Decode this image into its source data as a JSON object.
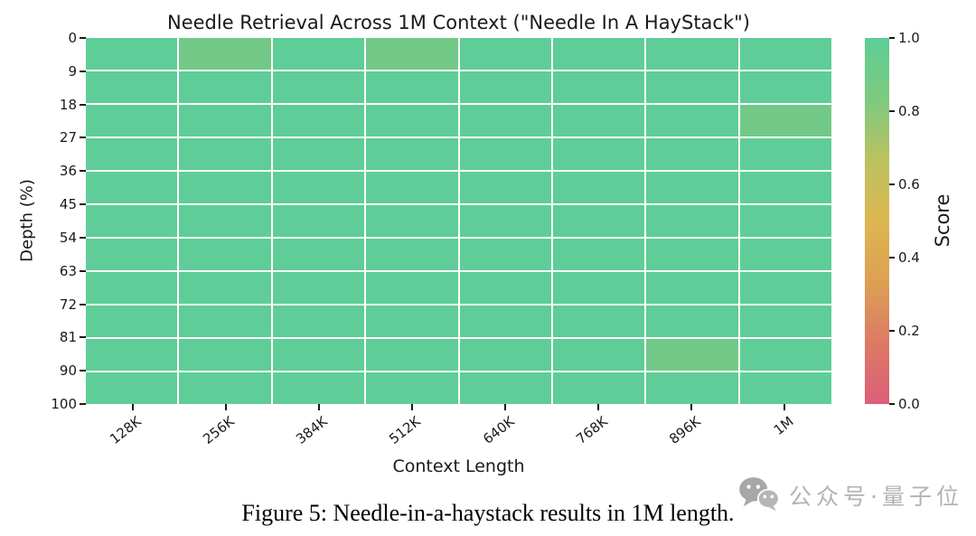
{
  "figure": {
    "caption": "Figure 5: Needle-in-a-haystack results in 1M length."
  },
  "watermark": {
    "text": "公众号·量子位",
    "icon": "wechat-icon"
  },
  "colors": {
    "background": "#ffffff",
    "text": "#1a1a1a",
    "cell_full": "#5FCD97",
    "cell_partial": "#72C987",
    "watermark_gray": "#b3b3b3",
    "colorbar_stops": [
      "#5ECD97",
      "#7CCA80",
      "#BAC260",
      "#DCB750",
      "#DDA053",
      "#DC7A65",
      "#DC5E79"
    ]
  },
  "chart_data": {
    "type": "heatmap",
    "title": "Needle Retrieval Across 1M Context (\"Needle In A HayStack\")",
    "xlabel": "Context Length",
    "ylabel": "Depth (%)",
    "categories": [
      "128K",
      "256K",
      "384K",
      "512K",
      "640K",
      "768K",
      "896K",
      "1M"
    ],
    "depth_ticks": [
      "0",
      "9",
      "18",
      "27",
      "36",
      "45",
      "54",
      "63",
      "72",
      "81",
      "90",
      "100"
    ],
    "row_bands": [
      "0-9",
      "9-18",
      "18-27",
      "27-36",
      "36-45",
      "45-54",
      "54-63",
      "63-72",
      "72-81",
      "81-90",
      "90-100"
    ],
    "rows": [
      [
        1.0,
        0.9,
        1.0,
        0.9,
        1.0,
        1.0,
        1.0,
        1.0
      ],
      [
        1.0,
        1.0,
        1.0,
        1.0,
        1.0,
        1.0,
        1.0,
        1.0
      ],
      [
        1.0,
        1.0,
        1.0,
        1.0,
        1.0,
        1.0,
        1.0,
        0.9
      ],
      [
        1.0,
        1.0,
        1.0,
        1.0,
        1.0,
        1.0,
        1.0,
        1.0
      ],
      [
        1.0,
        1.0,
        1.0,
        1.0,
        1.0,
        1.0,
        1.0,
        1.0
      ],
      [
        1.0,
        1.0,
        1.0,
        1.0,
        1.0,
        1.0,
        1.0,
        1.0
      ],
      [
        1.0,
        1.0,
        1.0,
        1.0,
        1.0,
        1.0,
        1.0,
        1.0
      ],
      [
        1.0,
        1.0,
        1.0,
        1.0,
        1.0,
        1.0,
        1.0,
        1.0
      ],
      [
        1.0,
        1.0,
        1.0,
        1.0,
        1.0,
        1.0,
        1.0,
        1.0
      ],
      [
        1.0,
        1.0,
        1.0,
        1.0,
        1.0,
        1.0,
        0.9,
        1.0
      ],
      [
        1.0,
        1.0,
        1.0,
        1.0,
        1.0,
        1.0,
        1.0,
        1.0
      ]
    ],
    "colorbar": {
      "label": "Score",
      "ticks": [
        "1.0",
        "0.8",
        "0.6",
        "0.4",
        "0.2",
        "0.0"
      ],
      "range": [
        0.0,
        1.0
      ]
    },
    "legend_position": "right",
    "grid": true
  }
}
